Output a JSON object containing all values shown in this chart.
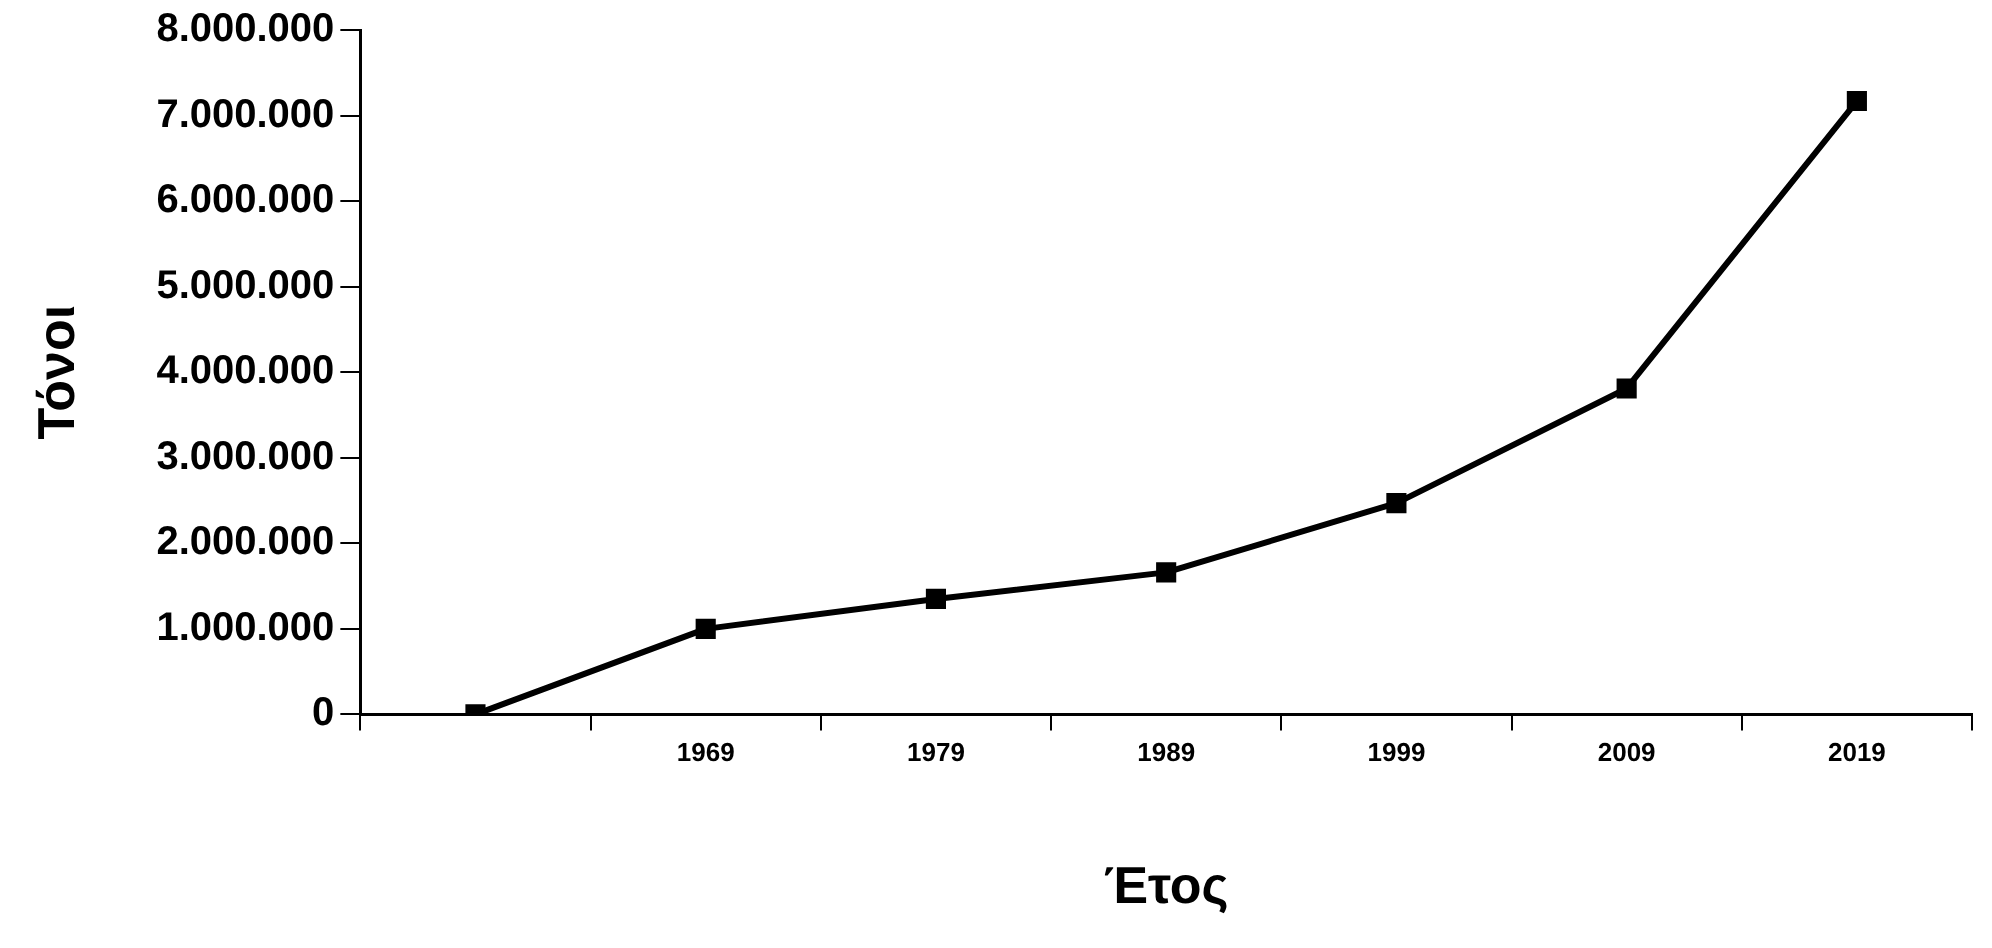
{
  "chart_data": {
    "type": "line",
    "xlabel": "Έτος",
    "ylabel": "Τόνοι",
    "categories": [
      null,
      "1969",
      "1979",
      "1989",
      "1999",
      "2009",
      "2019"
    ],
    "series": [
      {
        "color": "#000000",
        "values": [
          0,
          1000000,
          1350000,
          1660000,
          2470000,
          3810000,
          7170000
        ]
      }
    ],
    "ylim": [
      0,
      8000000
    ],
    "yticks": [
      {
        "value": 0,
        "label": "0"
      },
      {
        "value": 1000000,
        "label": "1.000.000"
      },
      {
        "value": 2000000,
        "label": "2.000.000"
      },
      {
        "value": 3000000,
        "label": "3.000.000"
      },
      {
        "value": 4000000,
        "label": "4.000.000"
      },
      {
        "value": 5000000,
        "label": "5.000.000"
      },
      {
        "value": 6000000,
        "label": "6.000.000"
      },
      {
        "value": 7000000,
        "label": "7.000.000"
      },
      {
        "value": 8000000,
        "label": "8.000.000"
      }
    ],
    "grid": false,
    "legend": false,
    "marker": "square",
    "line_style": "solid"
  }
}
